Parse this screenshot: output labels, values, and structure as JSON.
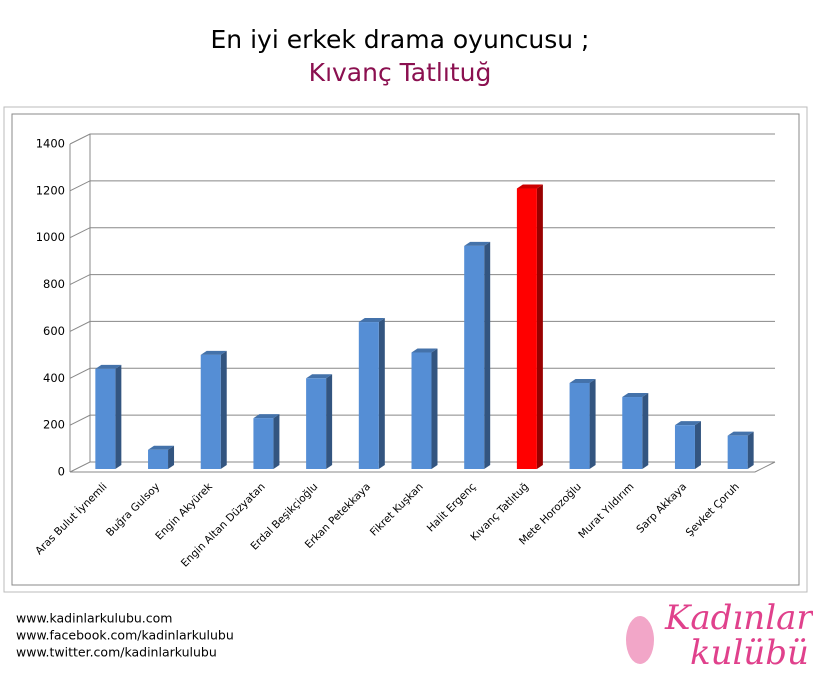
{
  "chart_data": {
    "type": "bar3d",
    "title": "En iyi erkek drama oyuncusu ;",
    "subtitle": "Kıvanç Tatlıtuğ",
    "categories": [
      "Aras Bulut İynemli",
      "Buğra Gulsoy",
      "Engin Akyürek",
      "Engin Altan Düzyatan",
      "Erdal Beşikçioğlu",
      "Erkan Petekkaya",
      "Fikret Kuşkan",
      "Halit Ergenç",
      "Kıvanç Tatlıtuğ",
      "Mete Horozoğlu",
      "Murat Yıldırım",
      "Sarp Akkaya",
      "Şevket Çoruh"
    ],
    "values": [
      440,
      95,
      500,
      230,
      400,
      640,
      510,
      965,
      1210,
      380,
      320,
      200,
      155
    ],
    "colors": [
      "#558ed5",
      "#558ed5",
      "#558ed5",
      "#558ed5",
      "#558ed5",
      "#558ed5",
      "#558ed5",
      "#558ed5",
      "#ff0000",
      "#558ed5",
      "#558ed5",
      "#558ed5",
      "#558ed5"
    ],
    "ylim": [
      0,
      1400
    ],
    "yticks": [
      0,
      200,
      400,
      600,
      800,
      1000,
      1200,
      1400
    ],
    "grid": true
  },
  "footer": {
    "links": [
      "www.kadinlarkulubu.com",
      "www.facebook.com/kadinlarkulubu",
      "www.twitter.com/kadinlarkulubu"
    ],
    "logo": [
      "Kadınlar",
      "kulübü"
    ]
  }
}
